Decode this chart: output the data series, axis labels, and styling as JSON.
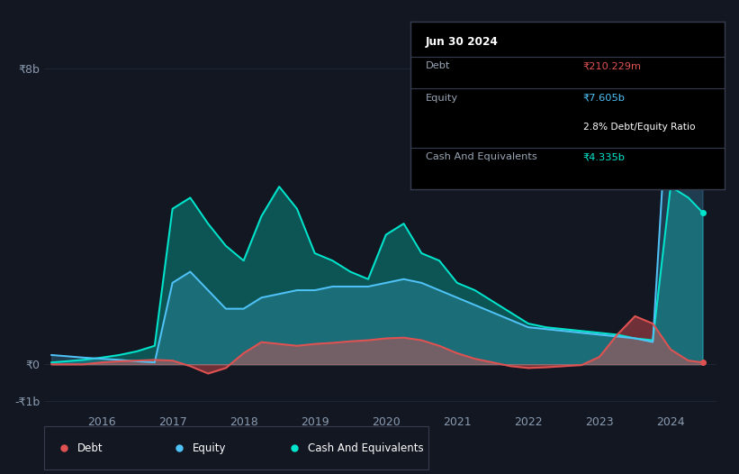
{
  "bg_color": "#131722",
  "plot_bg_color": "#131722",
  "grid_color": "#1e2a38",
  "ylabel_8b": "₹8b",
  "ylabel_0": "₹0",
  "ylabel_neg1b": "-₹1b",
  "x_labels": [
    "2016",
    "2017",
    "2018",
    "2019",
    "2020",
    "2021",
    "2022",
    "2023",
    "2024"
  ],
  "debt_color": "#e05252",
  "equity_color": "#4fc3f7",
  "cash_color": "#00e5cc",
  "tooltip_bg": "#000000",
  "tooltip_border": "#363c4e",
  "tooltip_title": "Jun 30 2024",
  "tooltip_debt_label": "Debt",
  "tooltip_debt_value": "₹210.229m",
  "tooltip_equity_label": "Equity",
  "tooltip_equity_value": "₹7.605b",
  "tooltip_ratio": "2.8% Debt/Equity Ratio",
  "tooltip_cash_label": "Cash And Equivalents",
  "tooltip_cash_value": "₹4.335b",
  "years": [
    2015.3,
    2015.5,
    2015.75,
    2016.0,
    2016.25,
    2016.5,
    2016.75,
    2017.0,
    2017.25,
    2017.5,
    2017.75,
    2018.0,
    2018.25,
    2018.5,
    2018.75,
    2019.0,
    2019.25,
    2019.5,
    2019.75,
    2020.0,
    2020.25,
    2020.5,
    2020.75,
    2021.0,
    2021.25,
    2021.5,
    2021.75,
    2022.0,
    2022.25,
    2022.5,
    2022.75,
    2023.0,
    2023.25,
    2023.5,
    2023.75,
    2024.0,
    2024.25,
    2024.45
  ],
  "debt": [
    0.0,
    0.0,
    0.0,
    0.05,
    0.08,
    0.1,
    0.12,
    0.1,
    -0.05,
    -0.25,
    -0.1,
    0.3,
    0.6,
    0.55,
    0.5,
    0.55,
    0.58,
    0.62,
    0.65,
    0.7,
    0.72,
    0.65,
    0.5,
    0.3,
    0.15,
    0.05,
    -0.05,
    -0.1,
    -0.08,
    -0.05,
    -0.02,
    0.2,
    0.8,
    1.3,
    1.1,
    0.4,
    0.1,
    0.05
  ],
  "equity": [
    0.25,
    0.22,
    0.18,
    0.15,
    0.12,
    0.08,
    0.05,
    2.2,
    2.5,
    2.0,
    1.5,
    1.5,
    1.8,
    1.9,
    2.0,
    2.0,
    2.1,
    2.1,
    2.1,
    2.2,
    2.3,
    2.2,
    2.0,
    1.8,
    1.6,
    1.4,
    1.2,
    1.0,
    0.95,
    0.9,
    0.85,
    0.8,
    0.75,
    0.7,
    0.6,
    8.5,
    7.6,
    7.0
  ],
  "cash": [
    0.05,
    0.08,
    0.12,
    0.18,
    0.25,
    0.35,
    0.5,
    4.2,
    4.5,
    3.8,
    3.2,
    2.8,
    4.0,
    4.8,
    4.2,
    3.0,
    2.8,
    2.5,
    2.3,
    3.5,
    3.8,
    3.0,
    2.8,
    2.2,
    2.0,
    1.7,
    1.4,
    1.1,
    1.0,
    0.95,
    0.9,
    0.85,
    0.8,
    0.7,
    0.65,
    4.8,
    4.5,
    4.1
  ],
  "ylim_min": -1.3,
  "ylim_max": 9.2,
  "xlim_min": 2015.2,
  "xlim_max": 2024.65
}
